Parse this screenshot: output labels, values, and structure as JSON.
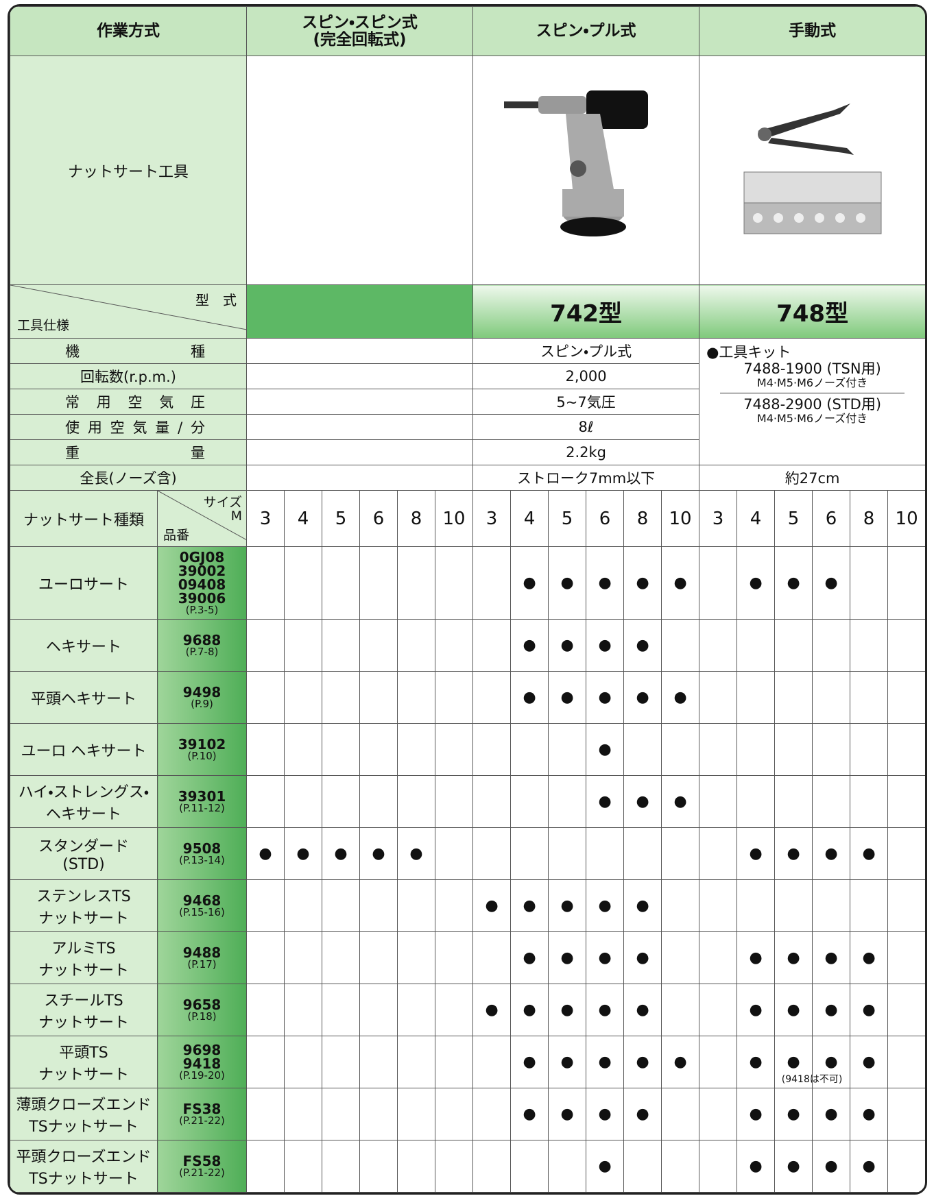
{
  "header": {
    "method_label": "作業方式",
    "methods": [
      {
        "name": "スピン・スピン式",
        "sub": "(完全回転式)"
      },
      {
        "name": "スピン・プル式"
      },
      {
        "name": "手動式"
      }
    ]
  },
  "tool_row": {
    "label": "ナットサート工具"
  },
  "model_row": {
    "type_label": "型　式",
    "spec_label": "工具仕様",
    "spin_pull": "742型",
    "manual": "748型"
  },
  "specs": {
    "labels": [
      "機種",
      "回転数(r.p.m.)",
      "常用空気圧",
      "使用空気量/分",
      "重量",
      "全長(ノーズ含)"
    ],
    "spin_pull": [
      "スピン・プル式",
      "2,000",
      "5~7気圧",
      "8ℓ",
      "2.2kg",
      "ストローク7mm以下"
    ],
    "manual_kit": {
      "bullet": "●工具キット",
      "items": [
        {
          "code": "7488-1900 (TSN用)",
          "note": "M4·M5·M6ノーズ付き"
        },
        {
          "code": "7488-2900 (STD用)",
          "note": "M4·M5·M6ノーズ付き"
        }
      ]
    },
    "manual_length": "約27cm"
  },
  "sizes_header": {
    "kind": "ナットサート種類",
    "size": "サイズ",
    "m": "M",
    "code": "品番",
    "sizes": [
      3,
      4,
      5,
      6,
      8,
      10
    ]
  },
  "rows": [
    {
      "name": [
        "ユーロサート"
      ],
      "codes": [
        "0GJ08",
        "39002",
        "09408",
        "39006"
      ],
      "page": "(P.3-5)",
      "marks": [
        null,
        null,
        null,
        null,
        null,
        null,
        null,
        "●",
        "●",
        "●",
        "●",
        "●",
        null,
        "●",
        "●",
        "●",
        null,
        null
      ]
    },
    {
      "name": [
        "ヘキサート"
      ],
      "codes": [
        "9688"
      ],
      "page": "(P.7-8)",
      "marks": [
        null,
        null,
        null,
        null,
        null,
        null,
        null,
        "●",
        "●",
        "●",
        "●",
        null,
        null,
        null,
        null,
        null,
        null,
        null
      ]
    },
    {
      "name": [
        "平頭ヘキサート"
      ],
      "codes": [
        "9498"
      ],
      "page": "(P.9)",
      "marks": [
        null,
        null,
        null,
        null,
        null,
        null,
        null,
        "●",
        "●",
        "●",
        "●",
        "●",
        null,
        null,
        null,
        null,
        null,
        null
      ]
    },
    {
      "name": [
        "ユーロ ヘキサート"
      ],
      "codes": [
        "39102"
      ],
      "page": "(P.10)",
      "marks": [
        null,
        null,
        null,
        null,
        null,
        null,
        null,
        null,
        null,
        "●",
        null,
        null,
        null,
        null,
        null,
        null,
        null,
        null
      ]
    },
    {
      "name": [
        "ハイ・ストレングス・",
        "ヘキサート"
      ],
      "codes": [
        "39301"
      ],
      "page": "(P.11-12)",
      "marks": [
        null,
        null,
        null,
        null,
        null,
        null,
        null,
        null,
        null,
        "●",
        "●",
        "●",
        null,
        null,
        null,
        null,
        null,
        null
      ]
    },
    {
      "name": [
        "スタンダード",
        "(STD)"
      ],
      "codes": [
        "9508"
      ],
      "page": "(P.13-14)",
      "marks": [
        "●",
        "●",
        "●",
        "●",
        "●",
        null,
        null,
        null,
        null,
        null,
        null,
        null,
        null,
        "●",
        "●",
        "●",
        "●",
        null
      ]
    },
    {
      "name": [
        "ステンレスTS",
        "ナットサート"
      ],
      "codes": [
        "9468"
      ],
      "page": "(P.15-16)",
      "marks": [
        null,
        null,
        null,
        null,
        null,
        null,
        "●",
        "●",
        "●",
        "●",
        "●",
        null,
        null,
        null,
        null,
        null,
        null,
        null
      ]
    },
    {
      "name": [
        "アルミTS",
        "ナットサート"
      ],
      "codes": [
        "9488"
      ],
      "page": "(P.17)",
      "marks": [
        null,
        null,
        null,
        null,
        null,
        null,
        null,
        "●",
        "●",
        "●",
        "●",
        null,
        null,
        "●",
        "●",
        "●",
        "●",
        null
      ]
    },
    {
      "name": [
        "スチールTS",
        "ナットサート"
      ],
      "codes": [
        "9658"
      ],
      "page": "(P.18)",
      "marks": [
        null,
        null,
        null,
        null,
        null,
        null,
        "●",
        "●",
        "●",
        "●",
        "●",
        null,
        null,
        "●",
        "●",
        "●",
        "●",
        null
      ]
    },
    {
      "name": [
        "平頭TS",
        "ナットサート"
      ],
      "codes": [
        "9698",
        "9418"
      ],
      "page": "(P.19-20)",
      "marks": [
        null,
        null,
        null,
        null,
        null,
        null,
        null,
        "●",
        "●",
        "●",
        "●",
        "●",
        null,
        "●",
        "●",
        "●",
        "●",
        null
      ],
      "note": "(9418は不可)"
    },
    {
      "name": [
        "薄頭クローズエンド",
        "TSナットサート"
      ],
      "codes": [
        "FS38"
      ],
      "page": "(P.21-22)",
      "marks": [
        null,
        null,
        null,
        null,
        null,
        null,
        null,
        "●",
        "●",
        "●",
        "●",
        null,
        null,
        "●",
        "●",
        "●",
        "●",
        null
      ]
    },
    {
      "name": [
        "平頭クローズエンド",
        "TSナットサート"
      ],
      "codes": [
        "FS58"
      ],
      "page": "(P.21-22)",
      "marks": [
        null,
        null,
        null,
        null,
        null,
        null,
        null,
        null,
        null,
        "●",
        null,
        null,
        null,
        "●",
        "●",
        "●",
        "●",
        null
      ]
    }
  ]
}
